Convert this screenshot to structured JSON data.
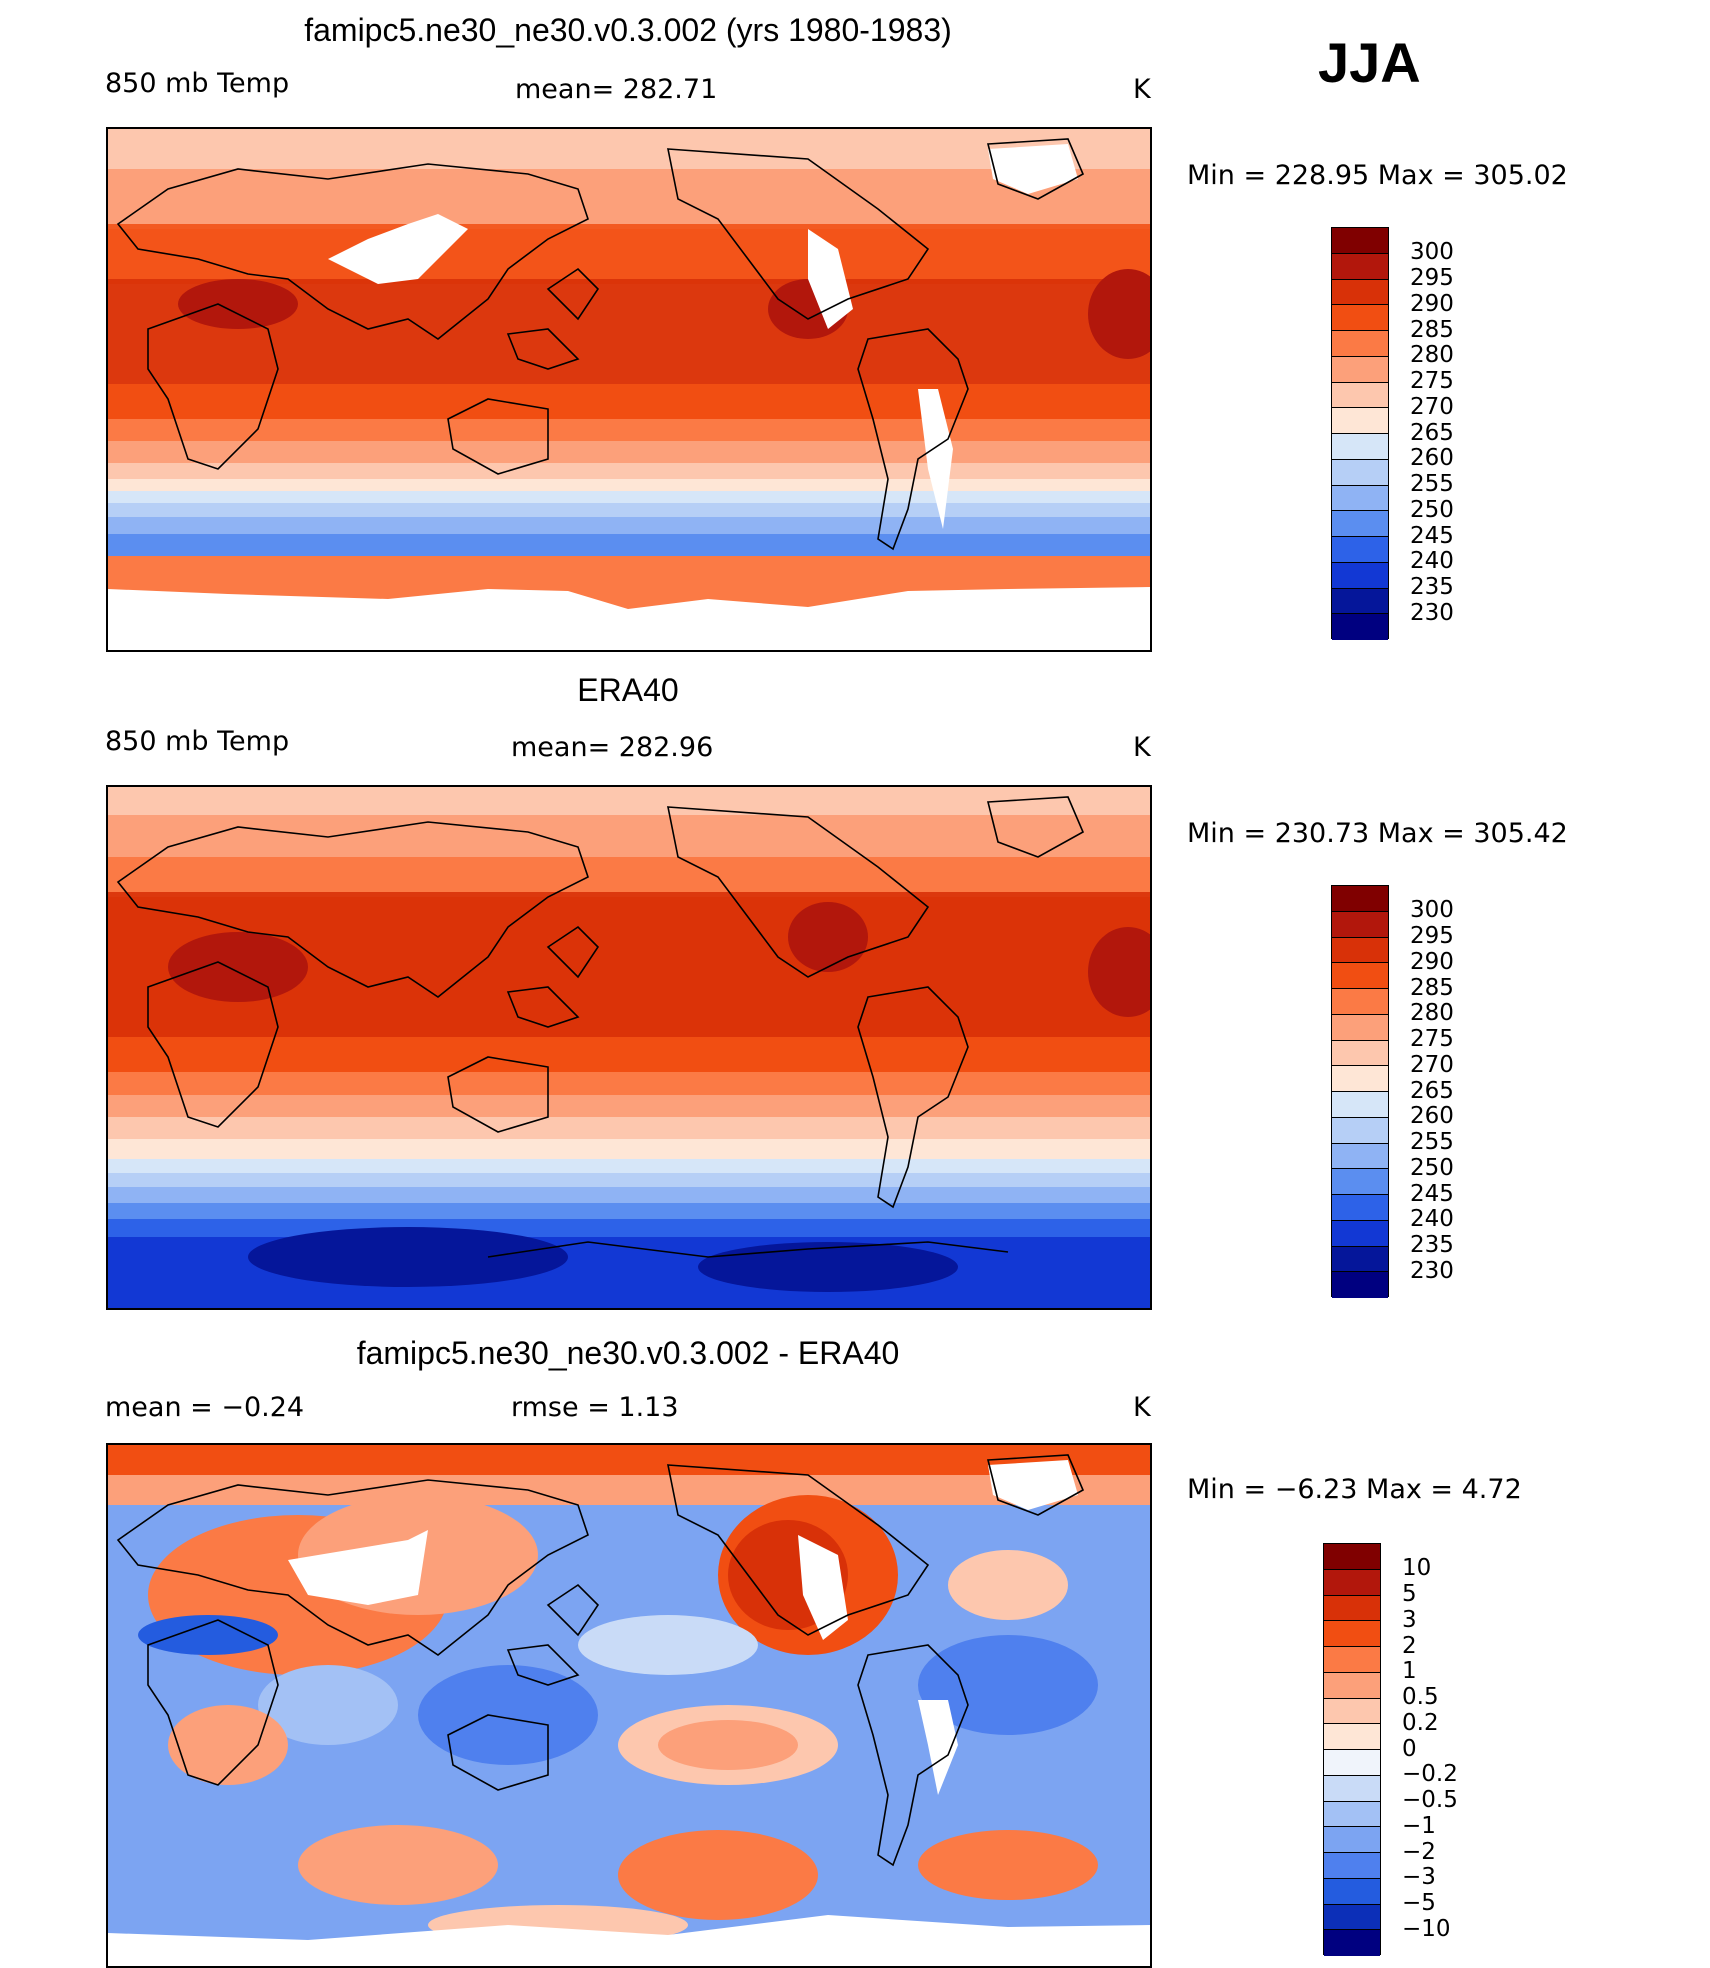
{
  "season": "JJA",
  "panels": [
    {
      "title": "famipc5.ne30_ne30.v0.3.002 (yrs 1980-1983)",
      "left_text": "850 mb Temp",
      "center_text": "mean= 282.71",
      "unit": "K",
      "minmax": "Min = 228.95 Max = 305.02",
      "colorbar_labels": [
        "300",
        "295",
        "290",
        "285",
        "280",
        "275",
        "270",
        "265",
        "260",
        "255",
        "250",
        "245",
        "240",
        "235",
        "230"
      ]
    },
    {
      "title": "ERA40",
      "left_text": "850 mb Temp",
      "center_text": "mean= 282.96",
      "unit": "K",
      "minmax": "Min = 230.73 Max = 305.42",
      "colorbar_labels": [
        "300",
        "295",
        "290",
        "285",
        "280",
        "275",
        "270",
        "265",
        "260",
        "255",
        "250",
        "245",
        "240",
        "235",
        "230"
      ]
    },
    {
      "title": "famipc5.ne30_ne30.v0.3.002 - ERA40",
      "left_text": "mean =  −0.24",
      "center_text": "rmse =   1.13",
      "unit": "K",
      "minmax": "Min =  −6.23 Max =   4.72",
      "colorbar_labels": [
        "10",
        "5",
        "3",
        "2",
        "1",
        "0.5",
        "0.2",
        "0",
        "−0.2",
        "−0.5",
        "−1",
        "−2",
        "−3",
        "−5",
        "−10"
      ]
    }
  ],
  "colors": {
    "abs_scale": [
      "#800000",
      "#b2170c",
      "#d83108",
      "#f14e12",
      "#fb7a45",
      "#fca07a",
      "#fdc7ae",
      "#fee6d6",
      "#d6e6f8",
      "#b6cff6",
      "#8fb3f4",
      "#5b8ef0",
      "#2d62e8",
      "#1238d4",
      "#05169a",
      "#000080"
    ],
    "diff_scale": [
      "#800000",
      "#b2170c",
      "#d83108",
      "#f14e12",
      "#fb7a45",
      "#fca07a",
      "#fdc7ae",
      "#fee6d6",
      "#f0f4fb",
      "#c9dbf7",
      "#a3c1f5",
      "#7ca4f2",
      "#4f80ee",
      "#245cdf",
      "#0c2fb8",
      "#000080"
    ],
    "land_outline": "#000000",
    "missing": "#ffffff"
  }
}
